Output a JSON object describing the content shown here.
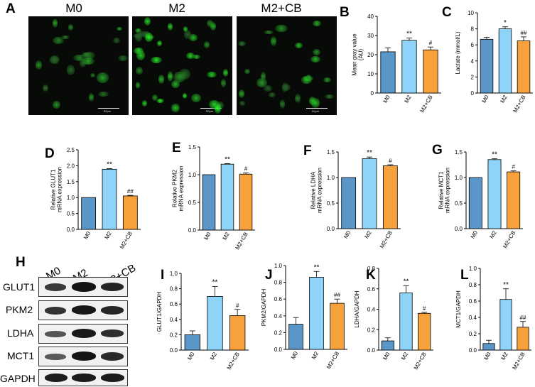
{
  "panel_letters": [
    "A",
    "B",
    "C",
    "D",
    "E",
    "F",
    "G",
    "H",
    "I",
    "J",
    "K",
    "L"
  ],
  "micrographs": {
    "titles": [
      "M0",
      "M2",
      "M2+CB"
    ],
    "scale_text": [
      "50μm",
      "50μm",
      "50μm"
    ]
  },
  "western_blot": {
    "lanes": [
      "M0",
      "M2",
      "M2+CB"
    ],
    "proteins": [
      "GLUT1",
      "PKM2",
      "LDHA",
      "MCT1",
      "GAPDH"
    ]
  },
  "colors": {
    "M0": "#5b96c9",
    "M2": "#8ed4f8",
    "M2+CB": "#f7a13c"
  },
  "chart_data": [
    {
      "id": "B",
      "type": "bar",
      "categories": [
        "M0",
        "M2",
        "M2+CB"
      ],
      "values": [
        21.5,
        27.5,
        22.5
      ],
      "errors": [
        2.0,
        1.2,
        1.5
      ],
      "ylabel": "Mean gray value\n(AU)",
      "ylim": [
        0,
        40
      ],
      "yticks": [
        0,
        10,
        20,
        30,
        40
      ],
      "annotations": [
        "",
        "**",
        "#"
      ]
    },
    {
      "id": "C",
      "type": "bar",
      "categories": [
        "M0",
        "M2",
        "M2+CB"
      ],
      "values": [
        6.7,
        8.0,
        6.5
      ],
      "errors": [
        0.25,
        0.25,
        0.5
      ],
      "ylabel": "Lactate (mmol/L)",
      "ylim": [
        0,
        10
      ],
      "yticks": [
        0,
        2,
        4,
        6,
        8,
        10
      ],
      "annotations": [
        "",
        "*",
        "##"
      ]
    },
    {
      "id": "D",
      "type": "bar",
      "categories": [
        "M0",
        "M2",
        "M2+CB"
      ],
      "values": [
        1.0,
        1.89,
        1.05
      ],
      "errors": [
        0,
        0.02,
        0.02
      ],
      "ylabel": "Relative GLUT1\nmRNA expression",
      "ylim": [
        0,
        2.5
      ],
      "yticks": [
        0.0,
        0.5,
        1.0,
        1.5,
        2.0,
        2.5
      ],
      "annotations": [
        "",
        "**",
        "##"
      ]
    },
    {
      "id": "E",
      "type": "bar",
      "categories": [
        "M0",
        "M2",
        "M2+CB"
      ],
      "values": [
        1.0,
        1.19,
        1.01
      ],
      "errors": [
        0,
        0.01,
        0.02
      ],
      "ylabel": "Relative PKM2\nmRNA expression",
      "ylim": [
        0,
        1.5
      ],
      "yticks": [
        0.0,
        0.5,
        1.0,
        1.5
      ],
      "annotations": [
        "",
        "**",
        "#"
      ]
    },
    {
      "id": "F",
      "type": "bar",
      "categories": [
        "M0",
        "M2",
        "M2+CB"
      ],
      "values": [
        1.0,
        1.37,
        1.23
      ],
      "errors": [
        0,
        0.03,
        0.02
      ],
      "ylabel": "Relative LDHA\nmRNA expression",
      "ylim": [
        0,
        1.5
      ],
      "yticks": [
        0.0,
        0.5,
        1.0,
        1.5
      ],
      "annotations": [
        "",
        "**",
        "#"
      ]
    },
    {
      "id": "G",
      "type": "bar",
      "categories": [
        "M0",
        "M2",
        "M2+CB"
      ],
      "values": [
        1.0,
        1.35,
        1.11
      ],
      "errors": [
        0,
        0.02,
        0.02
      ],
      "ylabel": "Relative MCT1\nmRNA expression",
      "ylim": [
        0,
        1.5
      ],
      "yticks": [
        0.0,
        0.5,
        1.0,
        1.5
      ],
      "annotations": [
        "",
        "**",
        "#"
      ]
    },
    {
      "id": "I",
      "type": "bar",
      "categories": [
        "M0",
        "M2",
        "M2+CB"
      ],
      "values": [
        0.2,
        0.7,
        0.45
      ],
      "errors": [
        0.05,
        0.13,
        0.08
      ],
      "ylabel": "GLUT1/GAPDH",
      "ylim": [
        0,
        1.0
      ],
      "yticks": [
        0.0,
        0.2,
        0.4,
        0.6,
        0.8,
        1.0
      ],
      "annotations": [
        "",
        "**",
        "#"
      ]
    },
    {
      "id": "J",
      "type": "bar",
      "categories": [
        "M0",
        "M2",
        "M2+CB"
      ],
      "values": [
        0.3,
        0.86,
        0.55
      ],
      "errors": [
        0.08,
        0.07,
        0.05
      ],
      "ylabel": "PKM2/GAPDH",
      "ylim": [
        0,
        1.0
      ],
      "yticks": [
        0.0,
        0.2,
        0.4,
        0.6,
        0.8,
        1.0
      ],
      "annotations": [
        "",
        "**",
        "##"
      ]
    },
    {
      "id": "K",
      "type": "bar",
      "categories": [
        "M0",
        "M2",
        "M2+CB"
      ],
      "values": [
        0.09,
        0.56,
        0.36
      ],
      "errors": [
        0.03,
        0.07,
        0.01
      ],
      "ylabel": "LDHA/GAPDH",
      "ylim": [
        0,
        0.8
      ],
      "yticks": [
        0.0,
        0.2,
        0.4,
        0.6,
        0.8
      ],
      "annotations": [
        "",
        "**",
        "#"
      ]
    },
    {
      "id": "L",
      "type": "bar",
      "categories": [
        "M0",
        "M2",
        "M2+CB"
      ],
      "values": [
        0.08,
        0.62,
        0.28
      ],
      "errors": [
        0.04,
        0.13,
        0.07
      ],
      "ylabel": "MCT1/GAPDH",
      "ylim": [
        0,
        1.0
      ],
      "yticks": [
        0.0,
        0.2,
        0.4,
        0.6,
        0.8,
        1.0
      ],
      "annotations": [
        "",
        "**",
        "##"
      ]
    }
  ]
}
